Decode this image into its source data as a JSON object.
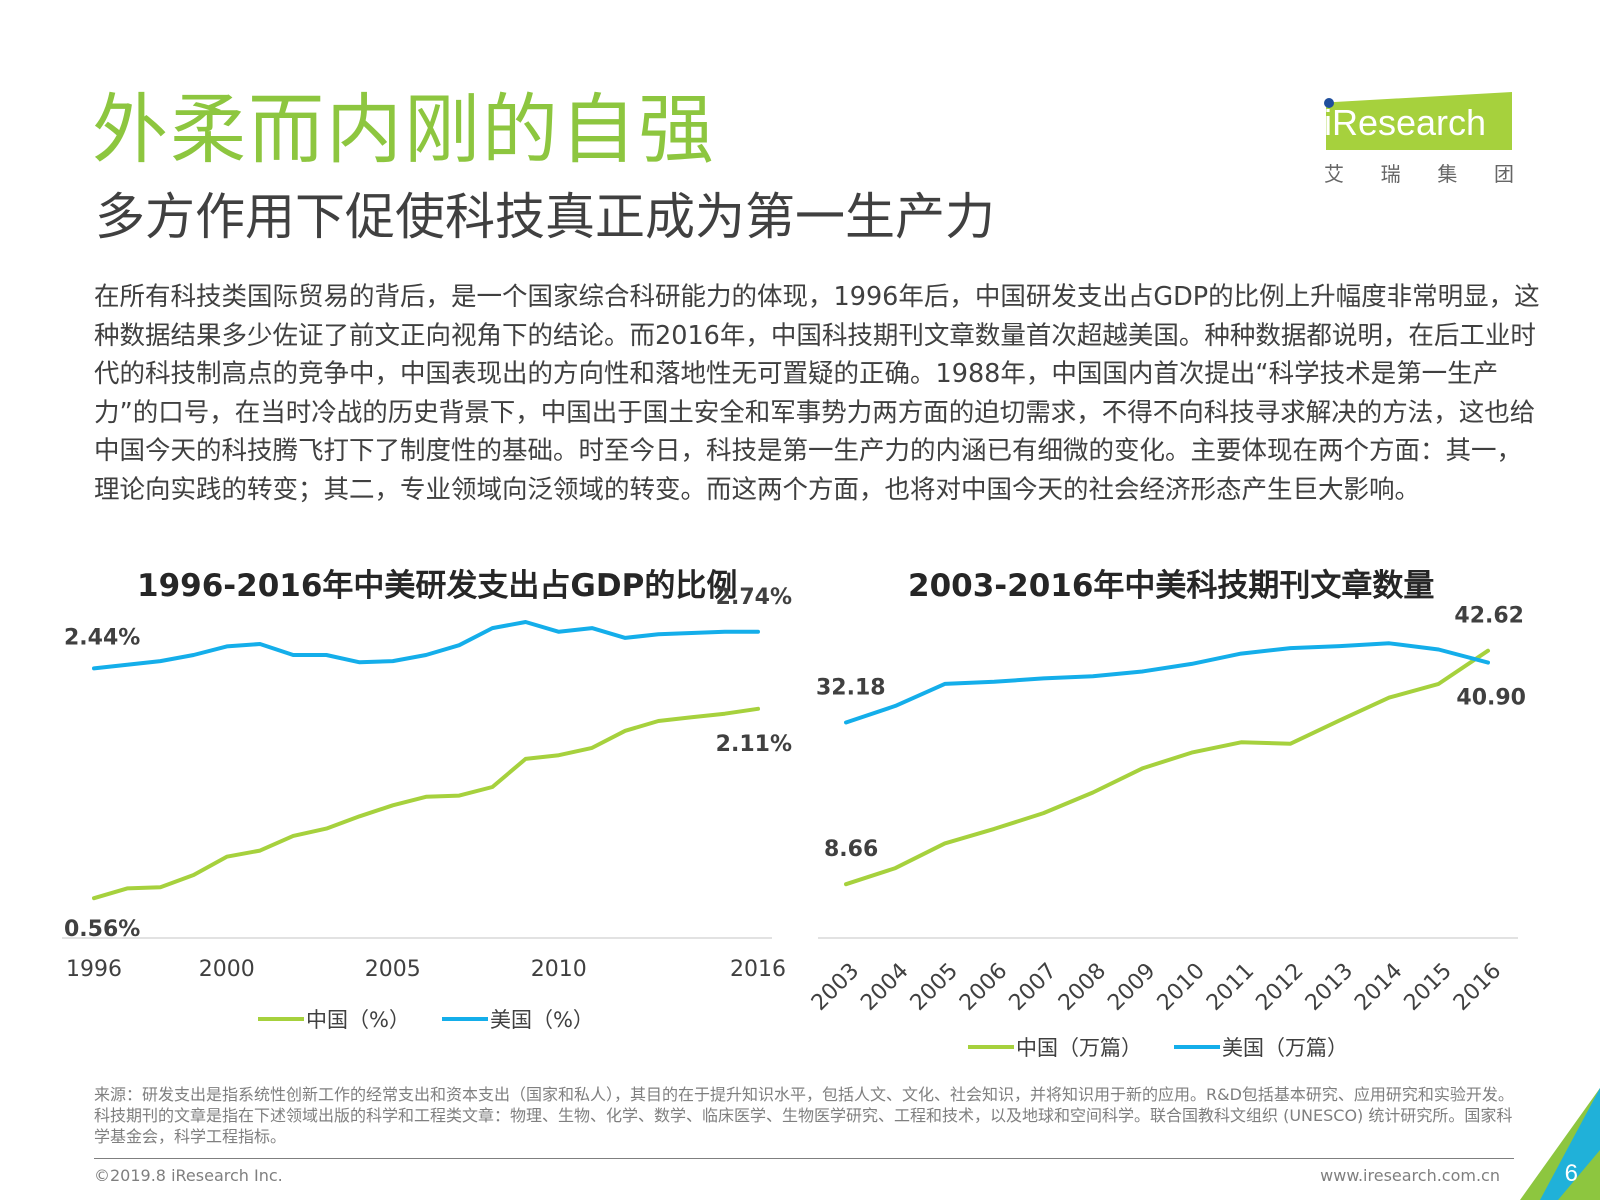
{
  "title": "外柔而内刚的自强",
  "subtitle": "多方作用下促使科技真正成为第一生产力",
  "logo": {
    "text": "iResearch",
    "chinese": [
      "艾",
      "瑞",
      "集",
      "团"
    ]
  },
  "body_text": "在所有科技类国际贸易的背后，是一个国家综合科研能力的体现，1996年后，中国研发支出占GDP的比例上升幅度非常明显，这种数据结果多少佐证了前文正向视角下的结论。而2016年，中国科技期刊文章数量首次超越美国。种种数据都说明，在后工业时代的科技制高点的竞争中，中国表现出的方向性和落地性无可置疑的正确。1988年，中国国内首次提出“科学技术是第一生产力”的口号，在当时冷战的历史背景下，中国出于国土安全和军事势力两方面的迫切需求，不得不向科技寻求解决的方法，这也给中国今天的科技腾飞打下了制度性的基础。时至今日，科技是第一生产力的内涵已有细微的变化。主要体现在两个方面：其一，理论向实践的转变；其二，专业领域向泛领域的转变。而这两个方面，也将对中国今天的社会经济形态产生巨大影响。",
  "colors": {
    "china": "#a6d13d",
    "usa": "#14aeea",
    "title_green": "#8dc63f"
  },
  "chart_data": [
    {
      "type": "line",
      "title": "1996-2016年中美研发支出占GDP的比例",
      "x": [
        1996,
        1997,
        1998,
        1999,
        2000,
        2001,
        2002,
        2003,
        2004,
        2005,
        2006,
        2007,
        2008,
        2009,
        2010,
        2011,
        2012,
        2013,
        2014,
        2015,
        2016
      ],
      "x_tick_labels": [
        "1996",
        "2000",
        "2005",
        "2010",
        "2016"
      ],
      "series": [
        {
          "name": "中国（%）",
          "color": "#a6d13d",
          "values": [
            0.56,
            0.64,
            0.65,
            0.75,
            0.9,
            0.95,
            1.07,
            1.13,
            1.23,
            1.32,
            1.39,
            1.4,
            1.47,
            1.7,
            1.73,
            1.79,
            1.93,
            2.01,
            2.04,
            2.07,
            2.11
          ]
        },
        {
          "name": "美国（%）",
          "color": "#14aeea",
          "values": [
            2.44,
            2.47,
            2.5,
            2.55,
            2.62,
            2.64,
            2.55,
            2.55,
            2.49,
            2.5,
            2.55,
            2.63,
            2.77,
            2.82,
            2.74,
            2.77,
            2.69,
            2.72,
            2.73,
            2.74,
            2.74
          ]
        }
      ],
      "data_labels": [
        {
          "text": "2.44%",
          "series": 1,
          "index": 0
        },
        {
          "text": "0.56%",
          "series": 0,
          "index": 0
        },
        {
          "text": "2.74%",
          "series": 1,
          "index": 20
        },
        {
          "text": "2.11%",
          "series": 0,
          "index": 20
        }
      ],
      "ylim": [
        0.3,
        3.0
      ],
      "legend": "bottom"
    },
    {
      "type": "line",
      "title": "2003-2016年中美科技期刊文章数量",
      "x": [
        2003,
        2004,
        2005,
        2006,
        2007,
        2008,
        2009,
        2010,
        2011,
        2012,
        2013,
        2014,
        2015,
        2016
      ],
      "x_tick_labels": [
        "2003",
        "2004",
        "2005",
        "2006",
        "2007",
        "2008",
        "2009",
        "2010",
        "2011",
        "2012",
        "2013",
        "2014",
        "2015",
        "2016"
      ],
      "series": [
        {
          "name": "中国（万篇）",
          "color": "#a6d13d",
          "values": [
            8.66,
            11.0,
            14.6,
            16.7,
            19.0,
            22.0,
            25.5,
            27.8,
            29.3,
            29.1,
            32.5,
            35.8,
            37.8,
            42.62
          ]
        },
        {
          "name": "美国（万篇）",
          "color": "#14aeea",
          "values": [
            32.18,
            34.6,
            37.8,
            38.1,
            38.6,
            38.9,
            39.6,
            40.7,
            42.2,
            43.0,
            43.3,
            43.7,
            42.8,
            40.9
          ]
        }
      ],
      "data_labels": [
        {
          "text": "32.18",
          "series": 1,
          "index": 0
        },
        {
          "text": "8.66",
          "series": 0,
          "index": 0
        },
        {
          "text": "42.62",
          "series": 0,
          "index": 13
        },
        {
          "text": "40.90",
          "series": 1,
          "index": 13
        }
      ],
      "ylim": [
        2,
        50
      ],
      "legend": "bottom"
    }
  ],
  "source": "来源：研发支出是指系统性创新工作的经常支出和资本支出（国家和私人），其目的在于提升知识水平，包括人文、文化、社会知识，并将知识用于新的应用。R&D包括基本研究、应用研究和实验开发。科技期刊的文章是指在下述领域出版的科学和工程类文章：物理、生物、化学、数学、临床医学、生物医学研究、工程和技术，以及地球和空间科学。联合国教科文组织 (UNESCO) 统计研究所。国家科学基金会，科学工程指标。",
  "footer": {
    "copyright": "©2019.8 iResearch Inc.",
    "website": "www.iresearch.com.cn",
    "page": "6"
  }
}
